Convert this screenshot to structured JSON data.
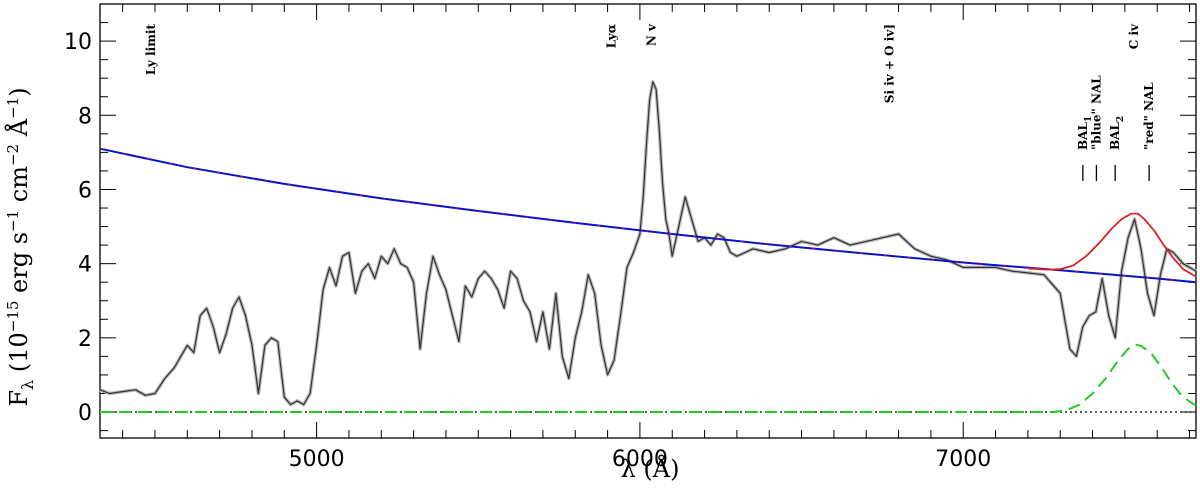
{
  "chart_data": {
    "type": "line",
    "xlabel": "λ (Å)",
    "ylabel": "F",
    "ylabel_sub": "λ",
    "ylabel_rest_a": "(10",
    "ylabel_exp": "−15",
    "ylabel_rest_b": "erg s",
    "ylabel_exp2": "−1",
    "ylabel_rest_c": "cm",
    "ylabel_exp3": "−2",
    "ylabel_rest_d": "Å",
    "ylabel_exp4": "−1",
    "ylabel_close": ")",
    "xlim": [
      4330,
      7720
    ],
    "ylim": [
      -0.7,
      11
    ],
    "xticks": [
      5000,
      6000,
      7000
    ],
    "yticks": [
      0,
      2,
      4,
      6,
      8,
      10
    ],
    "xtick_labels": [
      "5000",
      "6000",
      "7000"
    ],
    "ytick_labels": [
      "0",
      "2",
      "4",
      "6",
      "8",
      "10"
    ],
    "annotations": [
      {
        "text": "Ly limit",
        "x": 4500
      },
      {
        "text": "Lyα",
        "x": 5925
      },
      {
        "text": "N v",
        "x": 6048
      },
      {
        "text": "Si iv + O iv]",
        "x": 6785
      },
      {
        "text": "C iv",
        "x": 7540
      }
    ],
    "absorption_labels": [
      {
        "text": "BAL",
        "sub": "1",
        "x": 7370
      },
      {
        "text": "\"blue\" NAL",
        "x": 7412
      },
      {
        "text": "BAL",
        "sub": "2",
        "x": 7470
      },
      {
        "text": "\"red\" NAL",
        "x": 7575
      }
    ],
    "series": [
      {
        "role": "observed spectrum",
        "color": "#333333",
        "style": "solid",
        "x": [
          4330,
          4360,
          4400,
          4440,
          4470,
          4500,
          4530,
          4560,
          4580,
          4600,
          4620,
          4640,
          4660,
          4680,
          4700,
          4720,
          4740,
          4760,
          4780,
          4800,
          4820,
          4840,
          4860,
          4880,
          4900,
          4920,
          4940,
          4960,
          4980,
          5000,
          5020,
          5040,
          5060,
          5080,
          5100,
          5120,
          5140,
          5160,
          5180,
          5200,
          5220,
          5240,
          5260,
          5280,
          5300,
          5320,
          5340,
          5360,
          5380,
          5400,
          5420,
          5440,
          5460,
          5480,
          5500,
          5520,
          5540,
          5560,
          5580,
          5600,
          5620,
          5640,
          5660,
          5680,
          5700,
          5720,
          5740,
          5760,
          5780,
          5800,
          5820,
          5840,
          5860,
          5880,
          5900,
          5920,
          5940,
          5960,
          5980,
          6000,
          6010,
          6020,
          6030,
          6040,
          6050,
          6060,
          6070,
          6080,
          6090,
          6100,
          6120,
          6140,
          6160,
          6180,
          6200,
          6220,
          6240,
          6260,
          6280,
          6300,
          6350,
          6400,
          6450,
          6500,
          6550,
          6600,
          6650,
          6700,
          6750,
          6800,
          6850,
          6900,
          6950,
          7000,
          7050,
          7100,
          7150,
          7200,
          7250,
          7300,
          7330,
          7350,
          7370,
          7390,
          7410,
          7430,
          7450,
          7470,
          7490,
          7510,
          7530,
          7550,
          7570,
          7590,
          7610,
          7630,
          7650,
          7680,
          7720
        ],
        "y": [
          0.6,
          0.5,
          0.55,
          0.6,
          0.45,
          0.5,
          0.9,
          1.2,
          1.5,
          1.8,
          1.6,
          2.6,
          2.8,
          2.3,
          1.6,
          2.1,
          2.8,
          3.1,
          2.6,
          1.8,
          0.5,
          1.8,
          2.0,
          1.9,
          0.4,
          0.2,
          0.3,
          0.2,
          0.5,
          1.8,
          3.3,
          3.9,
          3.4,
          4.2,
          4.3,
          3.2,
          3.8,
          4.0,
          3.6,
          4.2,
          4.0,
          4.4,
          4.0,
          3.9,
          3.5,
          1.7,
          3.2,
          4.2,
          3.7,
          3.3,
          2.6,
          1.9,
          3.4,
          3.1,
          3.6,
          3.8,
          3.6,
          3.3,
          2.8,
          3.8,
          3.6,
          3.0,
          2.7,
          1.9,
          2.7,
          1.7,
          3.2,
          1.5,
          0.9,
          2.0,
          2.7,
          3.7,
          3.2,
          1.8,
          1.0,
          1.4,
          2.6,
          3.9,
          4.3,
          4.8,
          5.8,
          7.2,
          8.4,
          8.9,
          8.7,
          7.6,
          6.2,
          5.2,
          4.8,
          4.2,
          5.0,
          5.8,
          5.2,
          4.6,
          4.7,
          4.5,
          4.8,
          4.7,
          4.3,
          4.2,
          4.4,
          4.3,
          4.4,
          4.6,
          4.5,
          4.7,
          4.5,
          4.6,
          4.7,
          4.8,
          4.4,
          4.2,
          4.1,
          3.9,
          3.9,
          3.9,
          3.8,
          3.75,
          3.7,
          3.2,
          1.7,
          1.5,
          2.3,
          2.6,
          2.7,
          3.6,
          2.6,
          2.0,
          3.8,
          4.7,
          5.2,
          4.4,
          3.2,
          2.6,
          3.7,
          4.4,
          4.3,
          4.0,
          3.8
        ]
      },
      {
        "role": "continuum fit",
        "color": "#1010c8",
        "style": "solid",
        "x": [
          4330,
          4600,
          4900,
          5200,
          5500,
          5800,
          6100,
          6400,
          6700,
          7000,
          7300,
          7600,
          7720
        ],
        "y": [
          7.1,
          6.6,
          6.15,
          5.76,
          5.42,
          5.1,
          4.8,
          4.52,
          4.27,
          4.03,
          3.82,
          3.6,
          3.5
        ]
      },
      {
        "role": "continuum plus emission",
        "color": "#e02020",
        "style": "solid",
        "x": [
          7200,
          7260,
          7300,
          7340,
          7380,
          7420,
          7460,
          7490,
          7520,
          7540,
          7560,
          7590,
          7620,
          7650,
          7680,
          7720
        ],
        "y": [
          3.87,
          3.84,
          3.85,
          3.95,
          4.2,
          4.55,
          4.95,
          5.2,
          5.35,
          5.35,
          5.2,
          4.9,
          4.5,
          4.15,
          3.85,
          3.65
        ]
      },
      {
        "role": "C iv emission component",
        "color": "#22cc22",
        "style": "dashed",
        "x": [
          4330,
          7280,
          7320,
          7360,
          7400,
          7440,
          7480,
          7510,
          7530,
          7550,
          7580,
          7610,
          7640,
          7670,
          7700,
          7720
        ],
        "y": [
          0.0,
          0.0,
          0.05,
          0.2,
          0.5,
          0.9,
          1.4,
          1.7,
          1.82,
          1.78,
          1.6,
          1.25,
          0.85,
          0.5,
          0.28,
          0.18
        ]
      }
    ]
  }
}
